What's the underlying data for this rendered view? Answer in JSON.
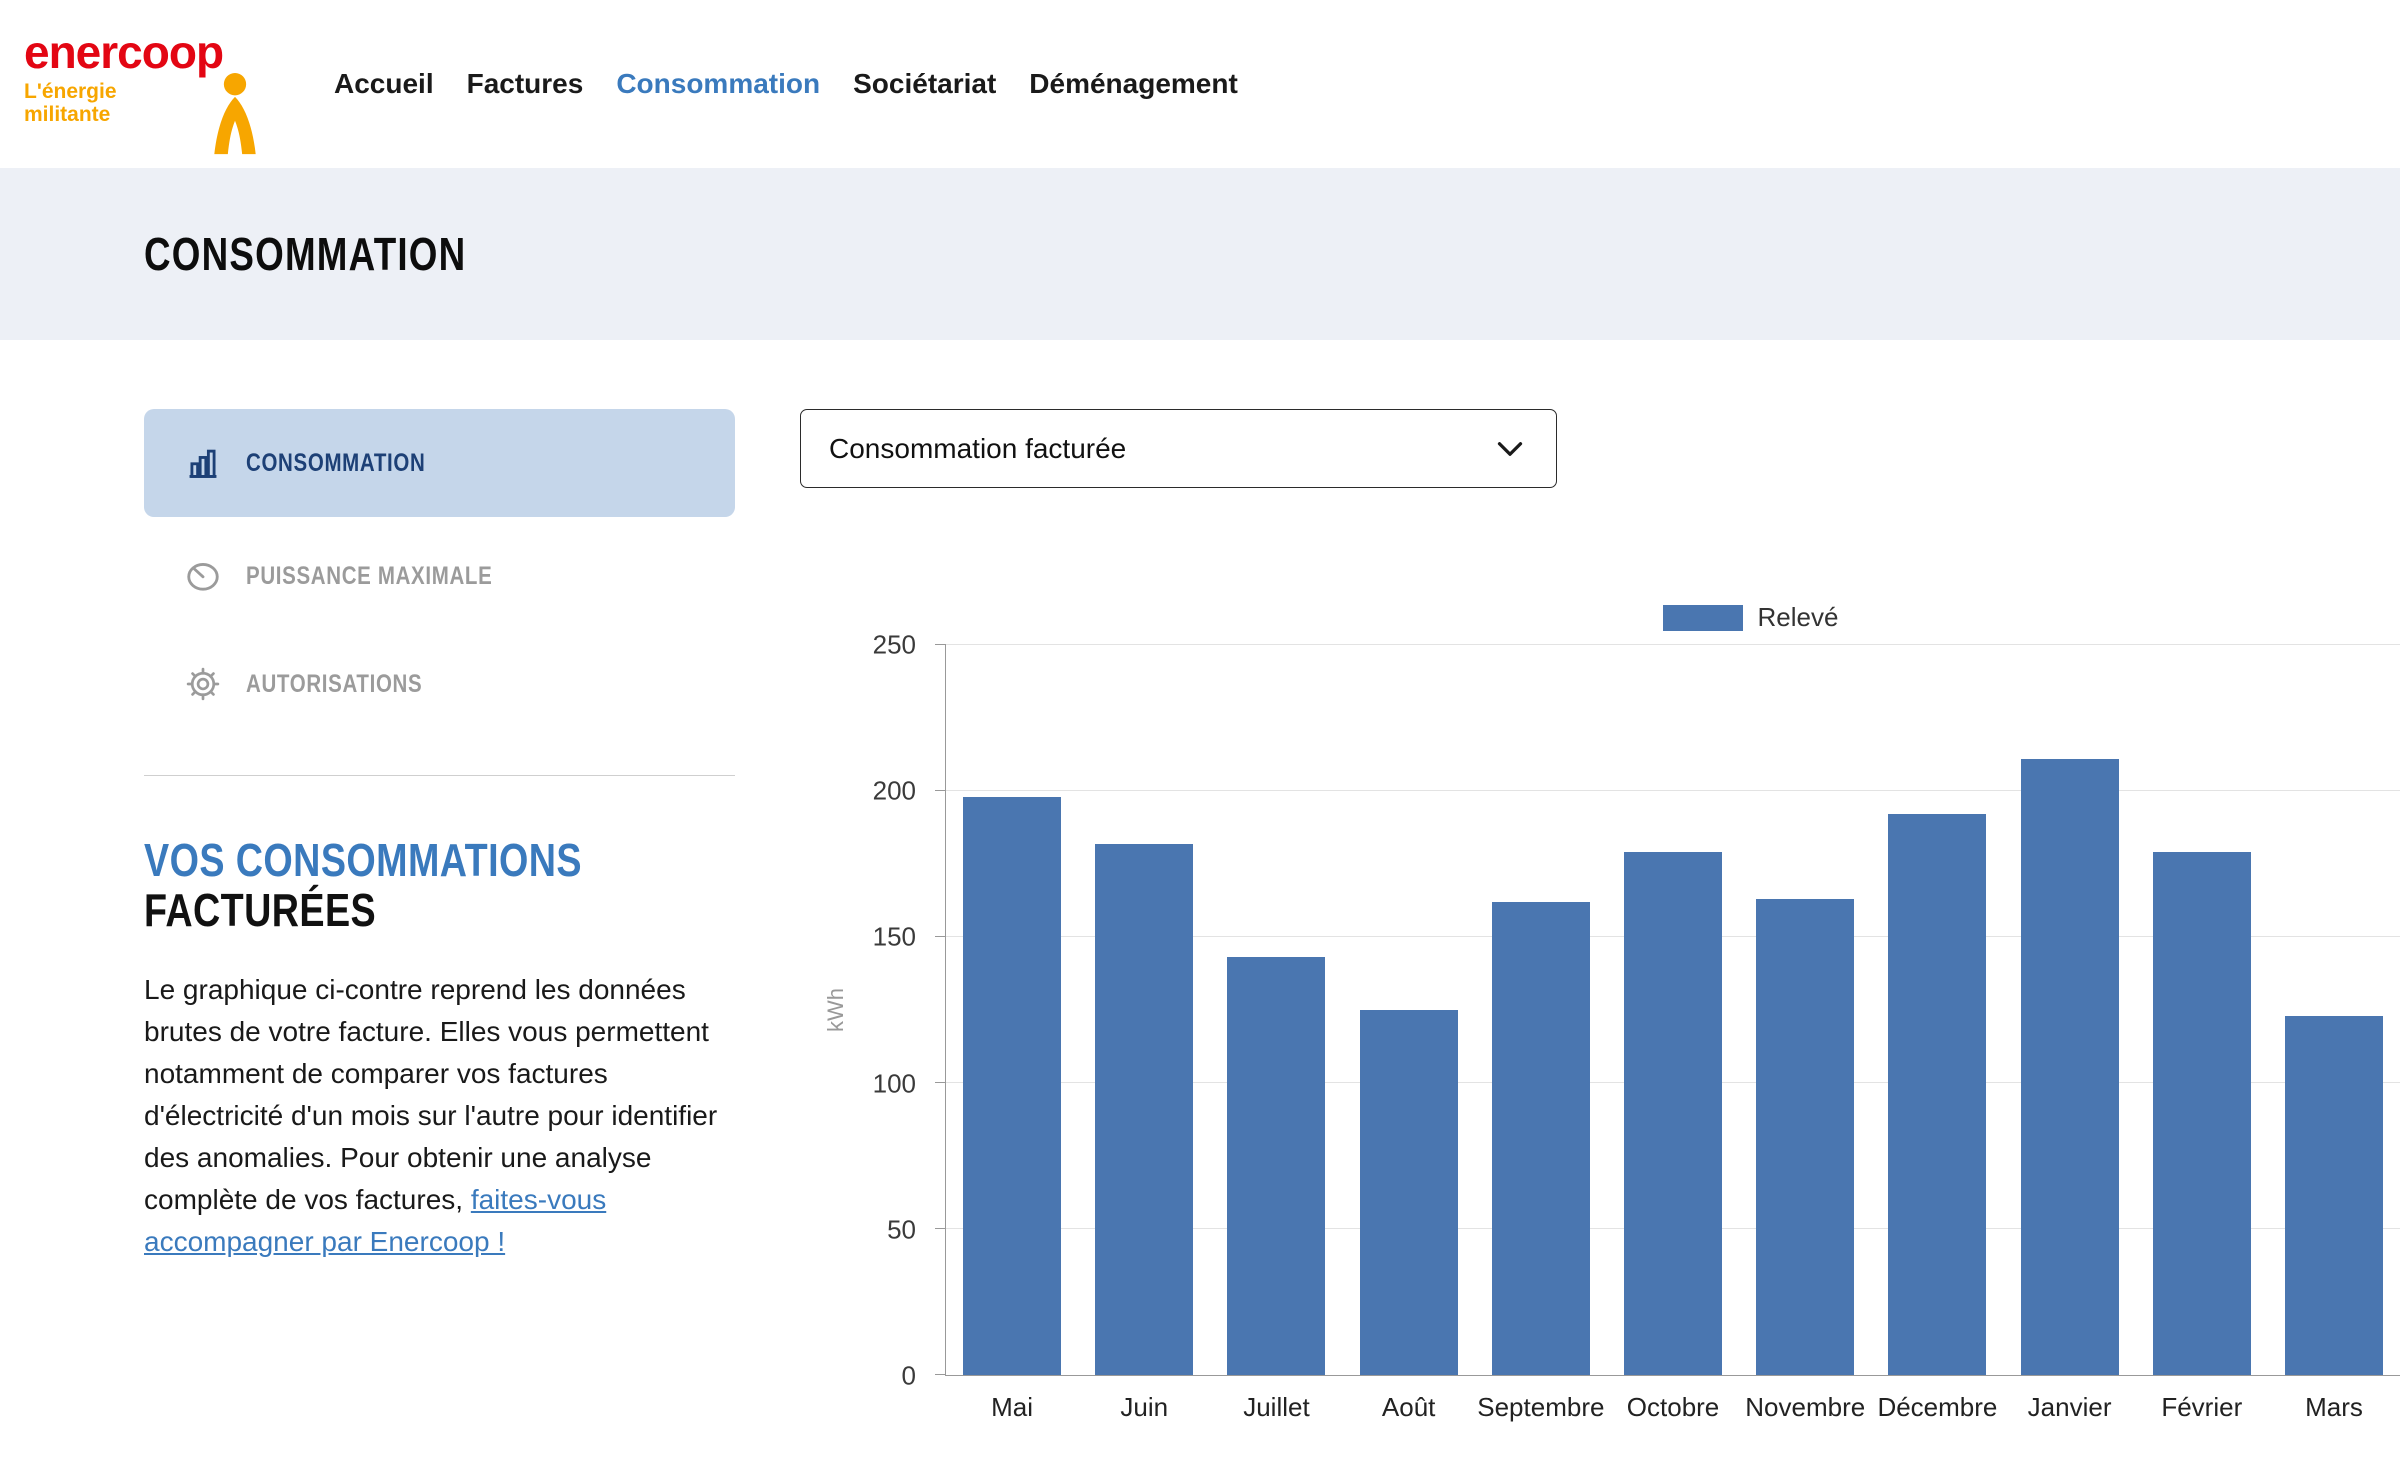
{
  "brand": {
    "name": "enercoop",
    "tagline_line1": "L'énergie",
    "tagline_line2": "militante"
  },
  "nav": {
    "items": [
      {
        "label": "Accueil",
        "active": false
      },
      {
        "label": "Factures",
        "active": false
      },
      {
        "label": "Consommation",
        "active": true
      },
      {
        "label": "Sociétariat",
        "active": false
      },
      {
        "label": "Déménagement",
        "active": false
      }
    ]
  },
  "page": {
    "title": "CONSOMMATION"
  },
  "sidebar": {
    "items": [
      {
        "label": "CONSOMMATION",
        "icon": "bar-chart-icon",
        "active": true
      },
      {
        "label": "PUISSANCE MAXIMALE",
        "icon": "gauge-icon",
        "active": false
      },
      {
        "label": "AUTORISATIONS",
        "icon": "gear-icon",
        "active": false
      }
    ],
    "section": {
      "heading_line1": "VOS CONSOMMATIONS",
      "heading_line2": "FACTURÉES",
      "paragraph": "Le graphique ci-contre reprend les données brutes de votre facture. Elles vous permettent notamment de comparer vos factures d'électricité d'un mois sur l'autre pour identifier des anomalies. Pour obtenir une analyse complète de vos factures, ",
      "link_text": "faites-vous accompagner par Enercoop !"
    }
  },
  "controls": {
    "selected_view": "Consommation facturée"
  },
  "colors": {
    "brand_red": "#e30613",
    "brand_orange": "#f7a600",
    "accent_blue": "#3a7abd",
    "sidebar_active_bg": "#c5d6ea",
    "sidebar_active_text": "#1d4076",
    "bar_blue": "#4a76b0",
    "band_bg": "#edf0f6"
  },
  "chart_data": {
    "type": "bar",
    "title": "",
    "categories": [
      "Mai",
      "Juin",
      "Juillet",
      "Août",
      "Septembre",
      "Octobre",
      "Novembre",
      "Décembre",
      "Janvier",
      "Février",
      "Mars"
    ],
    "values": [
      198,
      182,
      143,
      125,
      162,
      179,
      163,
      192,
      211,
      179,
      123
    ],
    "xlabel": "",
    "ylabel": "kWh",
    "ylim": [
      0,
      250
    ],
    "yticks": [
      0,
      50,
      100,
      150,
      200,
      250
    ],
    "grid": true,
    "legend_position": "top",
    "legend": [
      {
        "label": "Relevé",
        "color": "#4a76b0"
      }
    ],
    "bar_color": "#4a76b0"
  }
}
